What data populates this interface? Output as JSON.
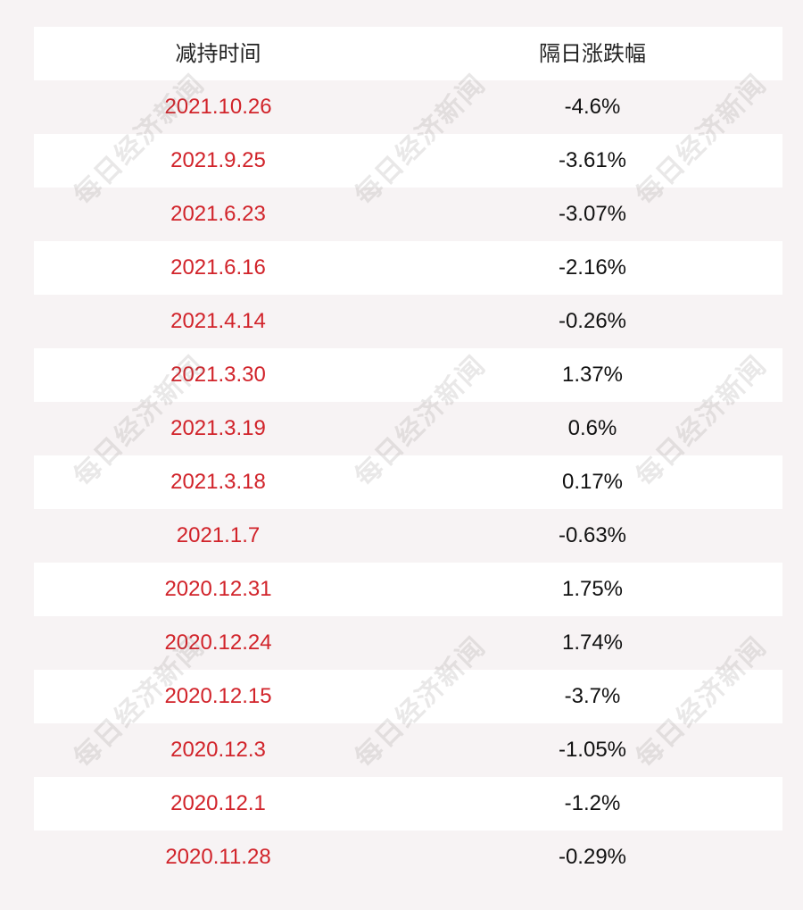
{
  "table": {
    "headers": {
      "date": "减持时间",
      "change": "隔日涨跌幅"
    },
    "rows": [
      {
        "date": "2021.10.26",
        "change": "-4.6%"
      },
      {
        "date": "2021.9.25",
        "change": "-3.61%"
      },
      {
        "date": "2021.6.23",
        "change": "-3.07%"
      },
      {
        "date": "2021.6.16",
        "change": "-2.16%"
      },
      {
        "date": "2021.4.14",
        "change": "-0.26%"
      },
      {
        "date": "2021.3.30",
        "change": "1.37%"
      },
      {
        "date": "2021.3.19",
        "change": "0.6%"
      },
      {
        "date": "2021.3.18",
        "change": "0.17%"
      },
      {
        "date": "2021.1.7",
        "change": "-0.63%"
      },
      {
        "date": "2020.12.31",
        "change": "1.75%"
      },
      {
        "date": "2020.12.24",
        "change": "1.74%"
      },
      {
        "date": "2020.12.15",
        "change": "-3.7%"
      },
      {
        "date": "2020.12.3",
        "change": "-1.05%"
      },
      {
        "date": "2020.12.1",
        "change": "-1.2%"
      },
      {
        "date": "2020.11.28",
        "change": "-0.29%"
      }
    ]
  },
  "watermark": {
    "text": "每日经济新闻"
  },
  "colors": {
    "date_text": "#d1232a",
    "value_text": "#111111",
    "shaded_row": "#f7f3f4",
    "white_row": "#ffffff"
  }
}
